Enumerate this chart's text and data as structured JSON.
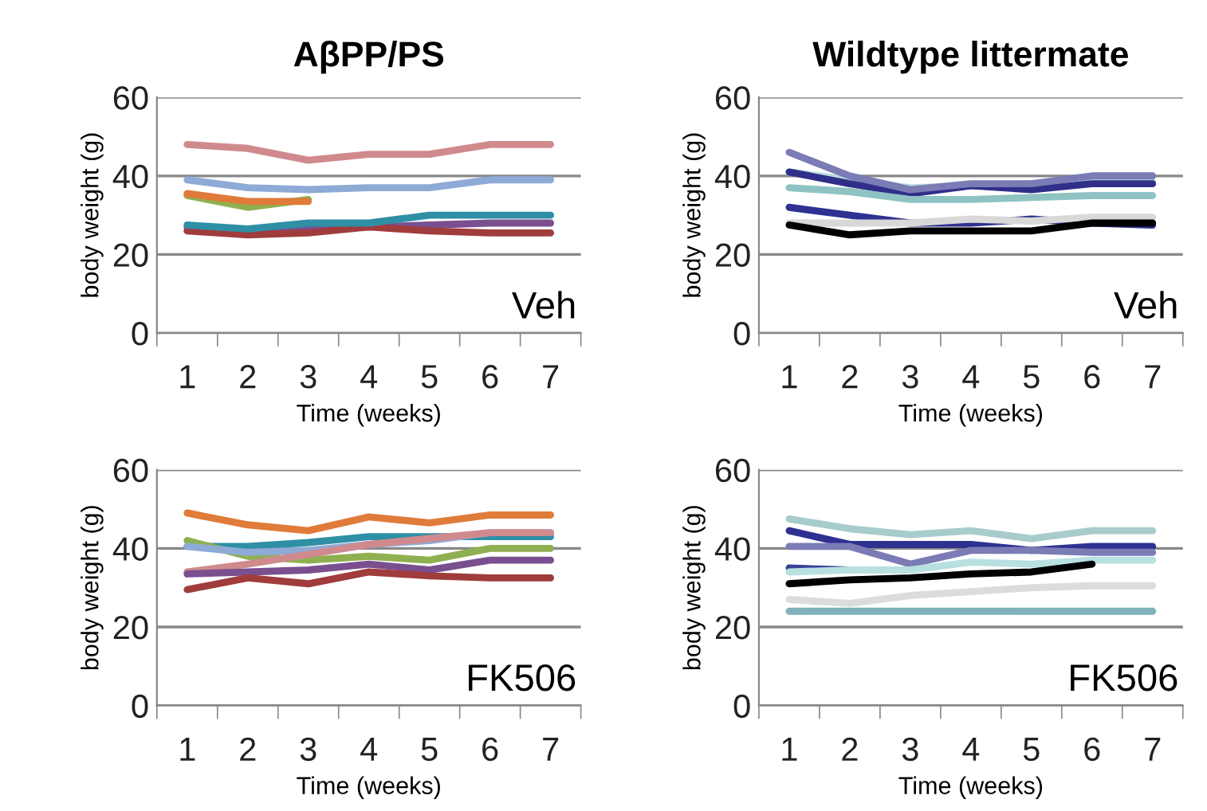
{
  "chart_data": [
    {
      "type": "line",
      "title": "AβPP/PS",
      "xlabel": "Time (weeks)",
      "ylabel": "body weight (g)",
      "categories": [
        "1",
        "2",
        "3",
        "4",
        "5",
        "6",
        "7"
      ],
      "ylim": [
        0,
        60
      ],
      "yticks": [
        0,
        20,
        40,
        60
      ],
      "grid": "y",
      "legend": false,
      "annotations": [
        "Veh"
      ],
      "series": [
        {
          "color": "#d08a8e",
          "values": [
            48,
            47,
            44,
            45.5,
            45.5,
            48,
            48
          ]
        },
        {
          "color": "#8eaad6",
          "values": [
            39,
            37,
            36.5,
            37,
            37,
            39,
            39
          ]
        },
        {
          "color": "#8fb050",
          "values": [
            35,
            32,
            34,
            null,
            null,
            null,
            null
          ]
        },
        {
          "color": "#e07b39",
          "values": [
            35.5,
            33.5,
            33.5,
            null,
            null,
            null,
            null
          ]
        },
        {
          "color": "#7a4f8f",
          "values": [
            27,
            26,
            27,
            27,
            27.5,
            28,
            28
          ]
        },
        {
          "color": "#a03c3c",
          "values": [
            26,
            25,
            25.5,
            27,
            26,
            25.5,
            25.5
          ]
        },
        {
          "color": "#2e8fa5",
          "values": [
            27.5,
            26.5,
            28,
            28,
            30,
            30,
            30
          ]
        }
      ]
    },
    {
      "type": "line",
      "title": "Wildtype littermate",
      "xlabel": "Time (weeks)",
      "ylabel": "body weight (g)",
      "categories": [
        "1",
        "2",
        "3",
        "4",
        "5",
        "6",
        "7"
      ],
      "ylim": [
        0,
        60
      ],
      "yticks": [
        0,
        20,
        40,
        60
      ],
      "grid": "y",
      "legend": false,
      "annotations": [
        "Veh"
      ],
      "series": [
        {
          "color": "#b8dde0",
          "values": [
            41,
            39,
            37,
            37.5,
            38,
            38.5,
            38.5
          ]
        },
        {
          "color": "#2f2f8a",
          "values": [
            41,
            38,
            35.5,
            37.5,
            36.5,
            38,
            38
          ]
        },
        {
          "color": "#7b7bb5",
          "values": [
            46,
            40,
            36.5,
            38,
            38,
            40,
            40
          ]
        },
        {
          "color": "#8fc3c3",
          "values": [
            37,
            36,
            34,
            34,
            34.5,
            35,
            35
          ]
        },
        {
          "color": "#2e3190",
          "values": [
            32,
            30,
            28,
            28,
            29,
            28,
            27.5
          ]
        },
        {
          "color": "#d8d8d8",
          "values": [
            28,
            28,
            28,
            29,
            28.5,
            29.5,
            29.5
          ]
        },
        {
          "color": "#000000",
          "values": [
            27.5,
            25,
            26,
            26,
            26,
            28,
            28
          ]
        }
      ]
    },
    {
      "type": "line",
      "xlabel": "Time (weeks)",
      "ylabel": "body weight (g)",
      "categories": [
        "1",
        "2",
        "3",
        "4",
        "5",
        "6",
        "7"
      ],
      "ylim": [
        0,
        60
      ],
      "yticks": [
        0,
        20,
        40,
        60
      ],
      "grid": "y",
      "legend": false,
      "annotations": [
        "FK506"
      ],
      "series": [
        {
          "color": "#e07b39",
          "values": [
            49,
            46,
            44.5,
            48,
            46.5,
            48.5,
            48.5
          ]
        },
        {
          "color": "#2e8fa5",
          "values": [
            40.5,
            40.5,
            41.5,
            43,
            43,
            43,
            43
          ]
        },
        {
          "color": "#8fb050",
          "values": [
            42,
            38,
            37,
            38,
            37,
            40,
            40
          ]
        },
        {
          "color": "#8eaad6",
          "values": [
            40.5,
            39,
            39.5,
            41,
            42,
            44,
            44
          ]
        },
        {
          "color": "#d08a8e",
          "values": [
            34,
            36,
            38.5,
            41,
            42.5,
            44,
            44
          ]
        },
        {
          "color": "#7a4f8f",
          "values": [
            33.5,
            34,
            34.5,
            36,
            34.5,
            37,
            37
          ]
        },
        {
          "color": "#a03c3c",
          "values": [
            29.5,
            32.5,
            31,
            34,
            33,
            32.5,
            32.5
          ]
        }
      ]
    },
    {
      "type": "line",
      "xlabel": "Time (weeks)",
      "ylabel": "body weight (g)",
      "categories": [
        "1",
        "2",
        "3",
        "4",
        "5",
        "6",
        "7"
      ],
      "ylim": [
        0,
        60
      ],
      "yticks": [
        0,
        20,
        40,
        60
      ],
      "grid": "y",
      "legend": false,
      "annotations": [
        "FK506"
      ],
      "series": [
        {
          "color": "#a8cccc",
          "values": [
            47.5,
            45,
            43.5,
            44.5,
            42.5,
            44.5,
            44.5
          ]
        },
        {
          "color": "#3a3f9a",
          "values": [
            35,
            34.5,
            null,
            null,
            null,
            null,
            null
          ]
        },
        {
          "color": "#2e3190",
          "values": [
            44.5,
            41,
            41,
            41,
            39.5,
            40.5,
            40.5
          ]
        },
        {
          "color": "#7b7bb5",
          "values": [
            40.5,
            40.5,
            36,
            39.5,
            39.5,
            39,
            39
          ]
        },
        {
          "color": "#b8e0e0",
          "values": [
            34,
            34.5,
            34.5,
            36.5,
            36,
            37,
            37
          ]
        },
        {
          "color": "#000000",
          "values": [
            31,
            32,
            32.5,
            33.5,
            34,
            36,
            null
          ]
        },
        {
          "color": "#dcdcdc",
          "values": [
            27,
            26,
            28,
            29,
            30,
            30.5,
            30.5
          ]
        },
        {
          "color": "#7fb2b8",
          "values": [
            24,
            24,
            24,
            24,
            24,
            24,
            24
          ]
        }
      ]
    }
  ]
}
